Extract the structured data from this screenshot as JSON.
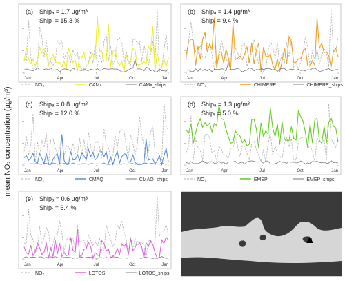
{
  "y_axis_label": "mean NO₂ concentration (µg/m³)",
  "style": {
    "obs_color": "#b0b0b0",
    "ships_color": "#7a7a7a"
  },
  "chart_data": [
    {
      "type": "line",
      "panel": "(a)",
      "ship_abs": "Shipₐ = 1.7 µg/m³",
      "ship_rel": "Shipᵣ = 15.3 %",
      "x_ticks": [
        "Jan",
        "Apr",
        "Jul",
        "Oct",
        "Jan"
      ],
      "ylim": [
        0,
        60
      ],
      "y_ticks": [
        0,
        20,
        40
      ],
      "model_color": "#eded2a",
      "series": [
        {
          "name": "NO₂",
          "style": "dashed",
          "base": 16,
          "amp": 20,
          "spikes": [
            [
              2,
              48
            ],
            [
              7,
              42
            ],
            [
              60,
              58
            ]
          ]
        },
        {
          "name": "CAMx",
          "style": "solid",
          "base": 10,
          "amp": 14,
          "spikes": [
            [
              33,
              52
            ],
            [
              38,
              44
            ],
            [
              58,
              42
            ]
          ]
        },
        {
          "name": "CAMx_ships",
          "style": "solid",
          "base": 2,
          "amp": 2.5,
          "spikes": [
            [
              50,
              12
            ]
          ]
        }
      ]
    },
    {
      "type": "line",
      "panel": "(b)",
      "ship_abs": "Shipₐ = 1.4 µg/m³",
      "ship_rel": "Shipᵣ = 9.4 %",
      "x_ticks": [
        "Jan",
        "Apr",
        "Jul",
        "Oct",
        "Jan"
      ],
      "ylim": [
        0,
        60
      ],
      "y_ticks": [
        0,
        20,
        40
      ],
      "model_color": "#f0a020",
      "series": [
        {
          "name": "NO₂",
          "style": "dashed",
          "base": 14,
          "amp": 18,
          "spikes": [
            [
              2,
              46
            ],
            [
              62,
              58
            ]
          ]
        },
        {
          "name": "CHIMERE",
          "style": "solid",
          "base": 14,
          "amp": 22,
          "spikes": [
            [
              12,
              50
            ],
            [
              20,
              45
            ],
            [
              56,
              50
            ]
          ]
        },
        {
          "name": "CHIMERE_ships",
          "style": "solid",
          "base": 2,
          "amp": 2,
          "spikes": [
            [
              18,
              9
            ]
          ]
        }
      ]
    },
    {
      "type": "line",
      "panel": "(c)",
      "ship_abs": "Shipₐ = 0.8 µg/m³",
      "ship_rel": "Shipᵣ = 12.0 %",
      "x_ticks": [
        "Jan",
        "Apr",
        "Jul",
        "Oct",
        "Jan"
      ],
      "ylim": [
        0,
        60
      ],
      "y_ticks": [
        0,
        20,
        40
      ],
      "model_color": "#5a8ee0",
      "series": [
        {
          "name": "NO₂",
          "style": "dashed",
          "base": 14,
          "amp": 22,
          "spikes": [
            [
              4,
              47
            ],
            [
              52,
              44
            ],
            [
              63,
              58
            ]
          ]
        },
        {
          "name": "CMAQ",
          "style": "solid",
          "base": 5,
          "amp": 10,
          "spikes": [
            [
              17,
              28
            ],
            [
              55,
              24
            ]
          ]
        },
        {
          "name": "CMAQ_ships",
          "style": "solid",
          "base": 1,
          "amp": 1,
          "spikes": []
        }
      ]
    },
    {
      "type": "line",
      "panel": "(d)",
      "ship_abs": "Shipₐ = 1.3 µg/m³",
      "ship_rel": "Shipᵣ = 5.0 %",
      "x_ticks": [
        "Jan",
        "Apr",
        "Jul",
        "Oct",
        "Jan"
      ],
      "ylim": [
        0,
        60
      ],
      "y_ticks": [
        0,
        20,
        40
      ],
      "model_color": "#66cc22",
      "series": [
        {
          "name": "NO₂",
          "style": "dashed",
          "base": 12,
          "amp": 18,
          "spikes": [
            [
              2,
              45
            ],
            [
              61,
              56
            ]
          ]
        },
        {
          "name": "EMEP",
          "style": "solid",
          "base": 28,
          "amp": 18,
          "spikes": [
            [
              14,
              55
            ],
            [
              36,
              52
            ],
            [
              48,
              50
            ]
          ]
        },
        {
          "name": "EMEP_ships",
          "style": "solid",
          "base": 2,
          "amp": 2,
          "spikes": []
        }
      ]
    },
    {
      "type": "line",
      "panel": "(e)",
      "ship_abs": "Shipₐ = 0.6 µg/m³",
      "ship_rel": "Shipᵣ = 6.4 %",
      "x_ticks": [
        "Jan",
        "Apr",
        "Jul",
        "Oct",
        "Jan"
      ],
      "ylim": [
        0,
        60
      ],
      "y_ticks": [
        0,
        20,
        40
      ],
      "model_color": "#dd66dd",
      "series": [
        {
          "name": "NO₂",
          "style": "dashed",
          "base": 14,
          "amp": 20,
          "spikes": [
            [
              2,
              46
            ],
            [
              60,
              58
            ]
          ]
        },
        {
          "name": "LOTOS",
          "style": "solid",
          "base": 8,
          "amp": 12,
          "spikes": [
            [
              24,
              28
            ]
          ]
        },
        {
          "name": "LOTOS_ships",
          "style": "solid",
          "base": 1,
          "amp": 1.2,
          "spikes": []
        }
      ]
    }
  ]
}
